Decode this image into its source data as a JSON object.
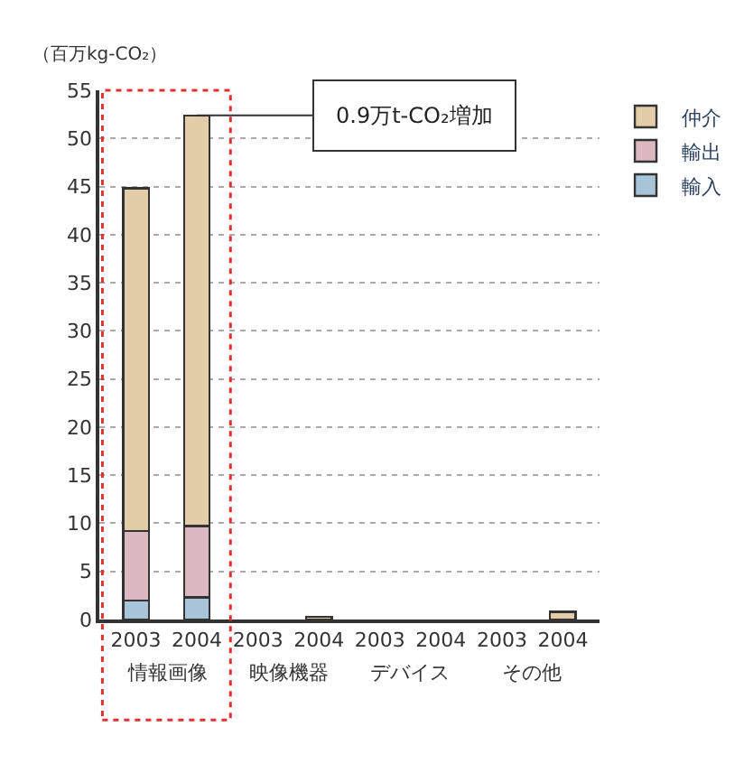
{
  "chart_data": {
    "type": "bar",
    "stacked": true,
    "ylabel": "（百万kg-CO₂）",
    "categories": [
      "2003",
      "2004",
      "2003",
      "2004",
      "2003",
      "2004",
      "2003",
      "2004"
    ],
    "series": [
      {
        "name": "輸入",
        "color": "#a8c4d8",
        "values": [
          2.0,
          2.3,
          0,
          0,
          0,
          0,
          0,
          0
        ]
      },
      {
        "name": "輸出",
        "color": "#dcb8c0",
        "values": [
          7.2,
          7.4,
          0,
          0,
          0,
          0,
          0,
          0
        ]
      },
      {
        "name": "仲介",
        "color": "#e2cda8",
        "values": [
          35.6,
          42.7,
          0,
          0.3,
          0,
          0,
          0,
          0.8
        ]
      }
    ],
    "annotations": [
      {
        "text": "0.9万t-CO₂増加",
        "x": "2004",
        "y": 52.4
      },
      "情報画像",
      "映像機器",
      "デバイス",
      "その他"
    ],
    "ylim": [
      0,
      55
    ],
    "yticks": [
      0,
      5,
      10,
      15,
      20,
      25,
      30,
      35,
      40,
      45,
      50,
      55
    ],
    "grid": "y",
    "legend": "top right"
  }
}
